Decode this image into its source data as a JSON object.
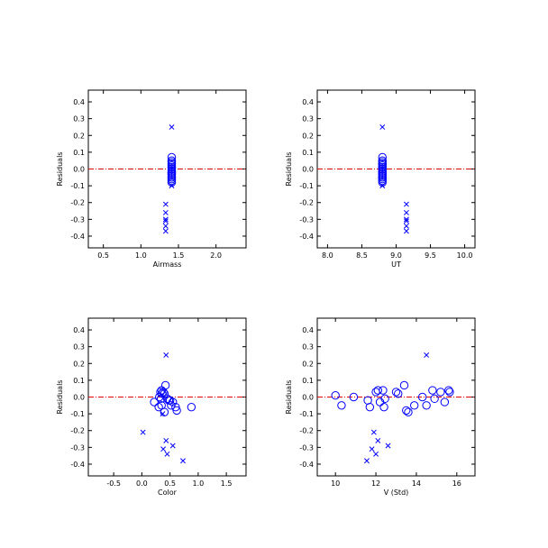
{
  "chart_data": [
    {
      "type": "scatter",
      "xlabel": "Airmass",
      "ylabel": "Residuals",
      "xlim": [
        0.3,
        2.4
      ],
      "ylim": [
        -0.47,
        0.47
      ],
      "xticks": [
        0.5,
        1.0,
        1.5,
        2.0
      ],
      "xtick_labels": [
        "0.5",
        "1.0",
        "1.5",
        "2.0"
      ],
      "yticks": [
        -0.4,
        -0.3,
        -0.2,
        -0.1,
        0.0,
        0.1,
        0.2,
        0.3,
        0.4
      ],
      "ytick_labels": [
        "-0.4",
        "-0.3",
        "-0.2",
        "-0.1",
        "0.0",
        "0.1",
        "0.2",
        "0.3",
        "0.4"
      ],
      "reference_line": 0,
      "grid": false,
      "legend": "none",
      "series": [
        {
          "marker": "circle",
          "color": "#0000ff",
          "x": [
            1.41,
            1.41,
            1.41,
            1.41,
            1.41,
            1.41,
            1.41,
            1.41,
            1.41,
            1.41,
            1.41,
            1.41,
            1.41,
            1.41,
            1.41,
            1.41,
            1.41,
            1.41,
            1.41,
            1.41
          ],
          "y": [
            0.07,
            0.05,
            0.04,
            0.03,
            0.03,
            0.02,
            0.01,
            0.0,
            -0.01,
            -0.02,
            -0.02,
            -0.03,
            -0.04,
            -0.05,
            -0.05,
            -0.06,
            -0.07,
            -0.08,
            0.01,
            -0.03
          ]
        },
        {
          "marker": "cross",
          "color": "#0000ff",
          "x": [
            1.41,
            1.41,
            1.33,
            1.33,
            1.33,
            1.33,
            1.33,
            1.33
          ],
          "y": [
            0.25,
            -0.1,
            -0.21,
            -0.26,
            -0.3,
            -0.31,
            -0.34,
            -0.37
          ]
        }
      ]
    },
    {
      "type": "scatter",
      "xlabel": "UT",
      "ylabel": "Residuals",
      "xlim": [
        7.85,
        10.15
      ],
      "ylim": [
        -0.47,
        0.47
      ],
      "xticks": [
        8.0,
        8.5,
        9.0,
        9.5,
        10.0
      ],
      "xtick_labels": [
        "8.0",
        "8.5",
        "9.0",
        "9.5",
        "10.0"
      ],
      "yticks": [
        -0.4,
        -0.3,
        -0.2,
        -0.1,
        0.0,
        0.1,
        0.2,
        0.3,
        0.4
      ],
      "ytick_labels": [
        "-0.4",
        "-0.3",
        "-0.2",
        "-0.1",
        "0.0",
        "0.1",
        "0.2",
        "0.3",
        "0.4"
      ],
      "reference_line": 0,
      "grid": false,
      "legend": "none",
      "series": [
        {
          "marker": "circle",
          "color": "#0000ff",
          "x": [
            8.8,
            8.8,
            8.8,
            8.8,
            8.8,
            8.8,
            8.8,
            8.8,
            8.8,
            8.8,
            8.8,
            8.8,
            8.8,
            8.8,
            8.8,
            8.8,
            8.8,
            8.8,
            8.8,
            8.8
          ],
          "y": [
            0.07,
            0.05,
            0.04,
            0.03,
            0.03,
            0.02,
            0.01,
            0.0,
            -0.01,
            -0.02,
            -0.02,
            -0.03,
            -0.04,
            -0.05,
            -0.05,
            -0.06,
            -0.07,
            -0.08,
            0.01,
            -0.03
          ]
        },
        {
          "marker": "cross",
          "color": "#0000ff",
          "x": [
            8.8,
            8.8,
            9.15,
            9.15,
            9.15,
            9.15,
            9.15,
            9.15
          ],
          "y": [
            0.25,
            -0.1,
            -0.21,
            -0.26,
            -0.3,
            -0.31,
            -0.34,
            -0.37
          ]
        }
      ]
    },
    {
      "type": "scatter",
      "xlabel": "Color",
      "ylabel": "Residuals",
      "xlim": [
        -0.95,
        1.85
      ],
      "ylim": [
        -0.47,
        0.47
      ],
      "xticks": [
        -0.5,
        0.0,
        0.5,
        1.0,
        1.5
      ],
      "xtick_labels": [
        "-0.5",
        "0.0",
        "0.5",
        "1.0",
        "1.5"
      ],
      "yticks": [
        -0.4,
        -0.3,
        -0.2,
        -0.1,
        0.0,
        0.1,
        0.2,
        0.3,
        0.4
      ],
      "ytick_labels": [
        "-0.4",
        "-0.3",
        "-0.2",
        "-0.1",
        "0.0",
        "0.1",
        "0.2",
        "0.3",
        "0.4"
      ],
      "reference_line": 0,
      "grid": false,
      "legend": "none",
      "series": [
        {
          "marker": "circle",
          "color": "#0000ff",
          "x": [
            0.35,
            0.38,
            0.33,
            0.36,
            0.4,
            0.42,
            0.31,
            0.34,
            0.45,
            0.48,
            0.52,
            0.55,
            0.6,
            0.35,
            0.4,
            0.62,
            0.88,
            0.22,
            0.3,
            0.5
          ],
          "y": [
            0.04,
            0.03,
            0.03,
            0.02,
            0.02,
            0.07,
            0.0,
            -0.01,
            -0.01,
            -0.02,
            -0.05,
            -0.03,
            -0.06,
            -0.05,
            -0.09,
            -0.08,
            -0.06,
            -0.03,
            -0.06,
            -0.02
          ]
        },
        {
          "marker": "cross",
          "color": "#0000ff",
          "x": [
            0.43,
            0.02,
            0.38,
            0.43,
            0.55,
            0.45,
            0.73,
            0.37
          ],
          "y": [
            0.25,
            -0.21,
            -0.31,
            -0.26,
            -0.29,
            -0.34,
            -0.38,
            -0.1
          ]
        }
      ]
    },
    {
      "type": "scatter",
      "xlabel": "V (Std)",
      "ylabel": "Residuals",
      "xlim": [
        9.1,
        16.9
      ],
      "ylim": [
        -0.47,
        0.47
      ],
      "xticks": [
        10,
        12,
        14,
        16
      ],
      "xtick_labels": [
        "10",
        "12",
        "14",
        "16"
      ],
      "yticks": [
        -0.4,
        -0.3,
        -0.2,
        -0.1,
        0.0,
        0.1,
        0.2,
        0.3,
        0.4
      ],
      "ytick_labels": [
        "-0.4",
        "-0.3",
        "-0.2",
        "-0.1",
        "0.0",
        "0.1",
        "0.2",
        "0.3",
        "0.4"
      ],
      "reference_line": 0,
      "grid": false,
      "legend": "none",
      "series": [
        {
          "marker": "circle",
          "color": "#0000ff",
          "x": [
            10.0,
            10.3,
            10.9,
            11.6,
            11.7,
            12.0,
            12.1,
            12.2,
            12.35,
            12.4,
            12.45,
            13.0,
            13.1,
            13.4,
            13.5,
            13.6,
            13.9,
            14.3,
            14.5,
            14.8,
            14.9,
            15.2,
            15.4,
            15.6,
            15.65
          ],
          "y": [
            0.01,
            -0.05,
            0.0,
            -0.02,
            -0.06,
            0.03,
            0.04,
            -0.03,
            0.04,
            -0.06,
            -0.01,
            0.03,
            0.02,
            0.07,
            -0.08,
            -0.09,
            -0.05,
            0.0,
            -0.05,
            0.04,
            -0.01,
            0.03,
            -0.03,
            0.04,
            0.03
          ]
        },
        {
          "marker": "cross",
          "color": "#0000ff",
          "x": [
            14.5,
            11.9,
            12.1,
            12.6,
            11.8,
            12.0,
            11.55
          ],
          "y": [
            0.25,
            -0.21,
            -0.26,
            -0.29,
            -0.31,
            -0.34,
            -0.38
          ]
        }
      ]
    }
  ]
}
